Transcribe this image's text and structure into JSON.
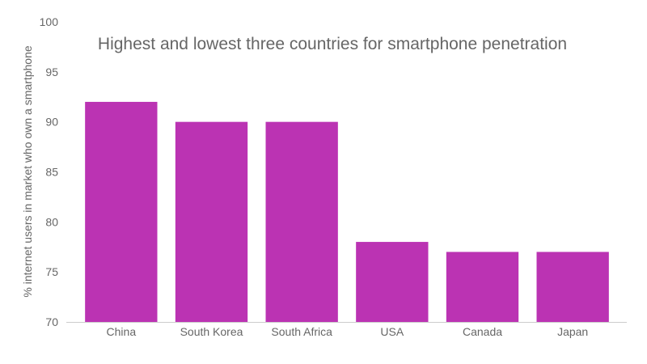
{
  "chart_data": {
    "type": "bar",
    "title": "Highest and lowest three countries for smartphone penetration",
    "xlabel": "",
    "ylabel": "% internet users in market who own a smartphone",
    "categories": [
      "China",
      "South Korea",
      "South Africa",
      "USA",
      "Canada",
      "Japan"
    ],
    "values": [
      92,
      90,
      90,
      78,
      77,
      77
    ],
    "ylim": [
      70,
      100
    ],
    "yticks": [
      "70",
      "75",
      "80",
      "85",
      "90",
      "95",
      "100"
    ],
    "bar_color": "#bb33b3",
    "grid": false,
    "legend": "none"
  }
}
